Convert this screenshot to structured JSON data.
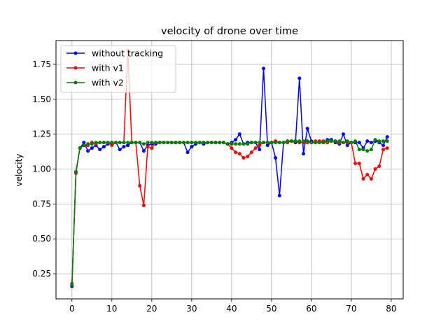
{
  "chart_data": {
    "type": "line",
    "title": "velocity of drone over time",
    "xlabel": "",
    "ylabel": "velocity",
    "xlim": [
      -4,
      83
    ],
    "ylim": [
      0.07,
      1.92
    ],
    "xticks": [
      0,
      10,
      20,
      30,
      40,
      50,
      60,
      70,
      80
    ],
    "yticks": [
      0.25,
      0.5,
      0.75,
      1.0,
      1.25,
      1.5,
      1.75
    ],
    "ytick_labels": [
      "0.25",
      "0.50",
      "0.75",
      "1.00",
      "1.25",
      "1.50",
      "1.75"
    ],
    "grid": true,
    "legend_position": "top-left",
    "x": [
      0,
      1,
      2,
      3,
      4,
      5,
      6,
      7,
      8,
      9,
      10,
      11,
      12,
      13,
      14,
      15,
      16,
      17,
      18,
      19,
      20,
      21,
      22,
      23,
      24,
      25,
      26,
      27,
      28,
      29,
      30,
      31,
      32,
      33,
      34,
      35,
      36,
      37,
      38,
      39,
      40,
      41,
      42,
      43,
      44,
      45,
      46,
      47,
      48,
      49,
      50,
      51,
      52,
      53,
      54,
      55,
      56,
      57,
      58,
      59,
      60,
      61,
      62,
      63,
      64,
      65,
      66,
      67,
      68,
      69,
      70,
      71,
      72,
      73,
      74,
      75,
      76,
      77,
      78,
      79
    ],
    "series": [
      {
        "name": "without tracking",
        "color": "#0000ff",
        "values": [
          0.16,
          0.98,
          1.15,
          1.19,
          1.13,
          1.15,
          1.17,
          1.14,
          1.16,
          1.18,
          1.19,
          1.19,
          1.14,
          1.16,
          1.17,
          1.19,
          1.19,
          1.19,
          1.13,
          1.17,
          1.18,
          1.18,
          1.19,
          1.19,
          1.19,
          1.19,
          1.19,
          1.19,
          1.19,
          1.12,
          1.16,
          1.18,
          1.19,
          1.18,
          1.19,
          1.19,
          1.19,
          1.19,
          1.19,
          1.18,
          1.19,
          1.21,
          1.25,
          1.18,
          1.19,
          1.19,
          1.19,
          1.14,
          1.72,
          1.17,
          1.19,
          1.08,
          0.81,
          1.19,
          1.2,
          1.2,
          1.19,
          1.65,
          1.11,
          1.29,
          1.2,
          1.19,
          1.19,
          1.19,
          1.21,
          1.21,
          1.19,
          1.18,
          1.25,
          1.17,
          1.19,
          1.19,
          1.19,
          1.15,
          1.2,
          1.19,
          1.2,
          1.19,
          1.17,
          1.23
        ]
      },
      {
        "name": "with v1",
        "color": "#ff0000",
        "values": [
          0.18,
          0.97,
          1.15,
          1.17,
          1.17,
          1.19,
          1.18,
          1.19,
          1.19,
          1.19,
          1.17,
          1.19,
          1.19,
          1.19,
          1.85,
          1.19,
          1.19,
          0.88,
          0.74,
          1.16,
          1.15,
          1.19,
          1.19,
          1.19,
          1.19,
          1.19,
          1.19,
          1.19,
          1.19,
          1.19,
          1.19,
          1.19,
          1.19,
          1.19,
          1.19,
          1.19,
          1.19,
          1.19,
          1.19,
          1.18,
          1.15,
          1.12,
          1.11,
          1.08,
          1.09,
          1.12,
          1.15,
          1.17,
          1.19,
          1.19,
          1.19,
          1.2,
          1.19,
          1.19,
          1.19,
          1.2,
          1.2,
          1.19,
          1.19,
          1.19,
          1.19,
          1.2,
          1.2,
          1.2,
          1.19,
          1.2,
          1.2,
          1.19,
          1.19,
          1.19,
          1.19,
          1.04,
          1.04,
          0.93,
          0.96,
          0.93,
          1.0,
          1.02,
          1.14,
          1.15
        ]
      },
      {
        "name": "with v2",
        "color": "#008000",
        "values": [
          0.17,
          0.98,
          1.15,
          1.17,
          1.18,
          1.18,
          1.19,
          1.19,
          1.19,
          1.19,
          1.19,
          1.19,
          1.19,
          1.19,
          1.19,
          1.19,
          1.19,
          1.19,
          1.18,
          1.19,
          1.19,
          1.19,
          1.19,
          1.19,
          1.19,
          1.19,
          1.19,
          1.19,
          1.19,
          1.19,
          1.19,
          1.19,
          1.19,
          1.19,
          1.19,
          1.19,
          1.19,
          1.19,
          1.19,
          1.18,
          1.18,
          1.18,
          1.18,
          1.18,
          1.18,
          1.19,
          1.19,
          1.19,
          1.19,
          1.19,
          1.19,
          1.19,
          1.19,
          1.19,
          1.2,
          1.2,
          1.2,
          1.2,
          1.2,
          1.2,
          1.19,
          1.19,
          1.19,
          1.19,
          1.2,
          1.2,
          1.2,
          1.2,
          1.19,
          1.2,
          1.19,
          1.2,
          1.14,
          1.14,
          1.13,
          1.14,
          1.21,
          1.2,
          1.2,
          1.2
        ]
      }
    ]
  }
}
